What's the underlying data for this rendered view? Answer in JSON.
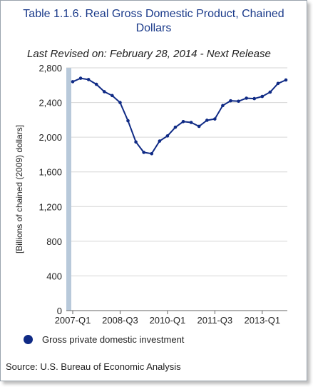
{
  "header": {
    "title_line1": "Table 1.1.6. Real Gross Domestic Product, Chained",
    "title_line2": "Dollars",
    "revised": "Last Revised on: February 28, 2014 - Next Release"
  },
  "chart_data": {
    "type": "line",
    "ylabel": "[Billions of chained (2009) dollars]",
    "ylim": [
      0,
      2800
    ],
    "yticks": [
      0,
      400,
      800,
      1200,
      1600,
      2000,
      2400,
      2800
    ],
    "ytick_labels": [
      "0",
      "400",
      "800",
      "1,200",
      "1,600",
      "2,000",
      "2,400",
      "2,800"
    ],
    "xtick_labels": [
      "2007-Q1",
      "2008-Q3",
      "2010-Q1",
      "2011-Q3",
      "2013-Q1"
    ],
    "xtick_index": [
      0,
      6,
      12,
      18,
      24
    ],
    "categories": [
      "2007-Q1",
      "2007-Q2",
      "2007-Q3",
      "2007-Q4",
      "2008-Q1",
      "2008-Q2",
      "2008-Q3",
      "2008-Q4",
      "2009-Q1",
      "2009-Q2",
      "2009-Q3",
      "2009-Q4",
      "2010-Q1",
      "2010-Q2",
      "2010-Q3",
      "2010-Q4",
      "2011-Q1",
      "2011-Q2",
      "2011-Q3",
      "2011-Q4",
      "2012-Q1",
      "2012-Q2",
      "2012-Q3",
      "2012-Q4",
      "2013-Q1",
      "2013-Q2",
      "2013-Q3",
      "2013-Q4"
    ],
    "series": [
      {
        "name": "Gross private domestic investment",
        "color": "#0f2a85",
        "values": [
          2640,
          2680,
          2665,
          2610,
          2525,
          2480,
          2400,
          2190,
          1945,
          1825,
          1810,
          1955,
          2015,
          2115,
          2180,
          2170,
          2125,
          2195,
          2210,
          2365,
          2420,
          2415,
          2450,
          2445,
          2470,
          2520,
          2620,
          2660
        ]
      }
    ],
    "grid": true,
    "legend_position": "bottom-left"
  },
  "footer": {
    "source": "Source: U.S. Bureau of Economic Analysis"
  }
}
